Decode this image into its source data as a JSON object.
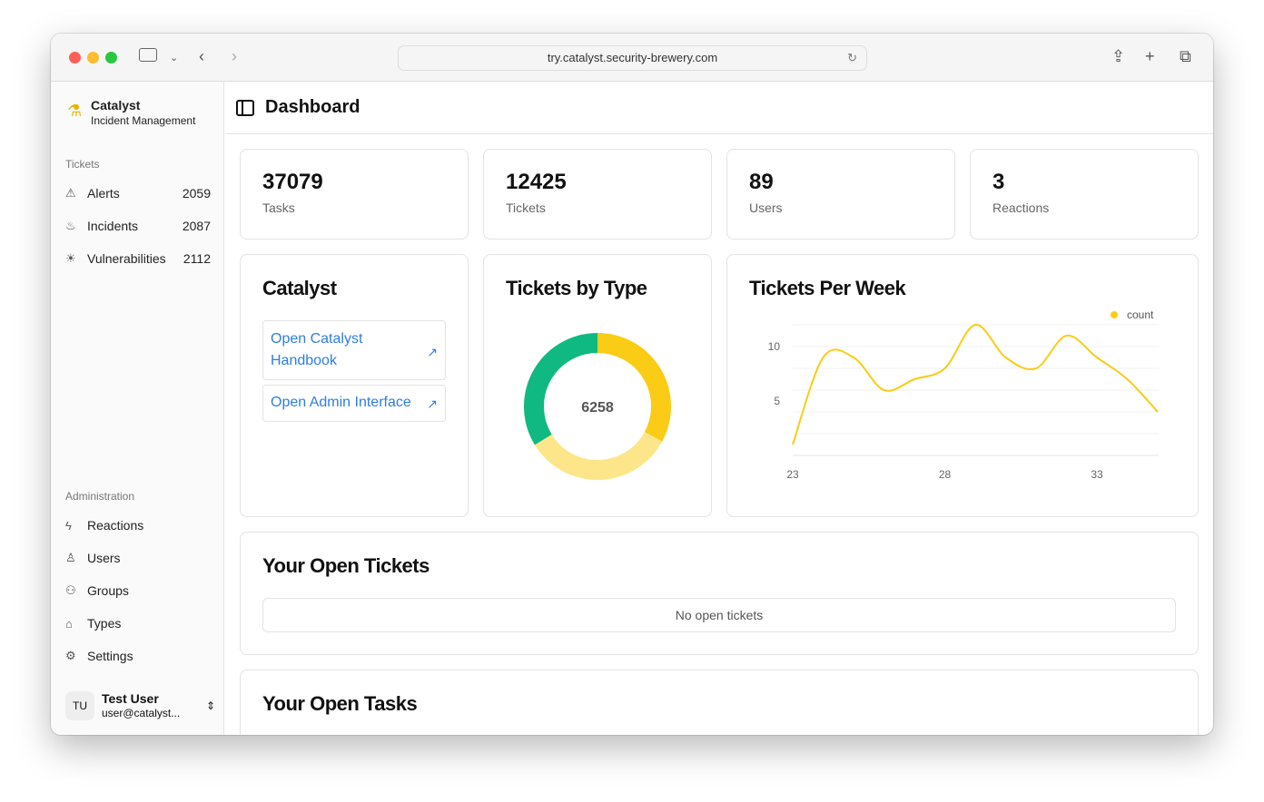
{
  "browser": {
    "url": "try.catalyst.security-brewery.com"
  },
  "sidebar": {
    "brand": {
      "name": "Catalyst",
      "subtitle": "Incident Management"
    },
    "tickets_label": "Tickets",
    "tickets": [
      {
        "label": "Alerts",
        "count": "2059",
        "icon": "alert-triangle-icon"
      },
      {
        "label": "Incidents",
        "count": "2087",
        "icon": "flame-icon"
      },
      {
        "label": "Vulnerabilities",
        "count": "2112",
        "icon": "bug-icon"
      }
    ],
    "admin_label": "Administration",
    "admin": [
      {
        "label": "Reactions",
        "icon": "zap-icon"
      },
      {
        "label": "Users",
        "icon": "user-icon"
      },
      {
        "label": "Groups",
        "icon": "users-icon"
      },
      {
        "label": "Types",
        "icon": "tag-icon"
      },
      {
        "label": "Settings",
        "icon": "gear-icon"
      }
    ],
    "user": {
      "initials": "TU",
      "name": "Test User",
      "email": "user@catalyst..."
    }
  },
  "header": {
    "title": "Dashboard"
  },
  "stats": [
    {
      "value": "37079",
      "label": "Tasks"
    },
    {
      "value": "12425",
      "label": "Tickets"
    },
    {
      "value": "89",
      "label": "Users"
    },
    {
      "value": "3",
      "label": "Reactions"
    }
  ],
  "catalyst_card": {
    "title": "Catalyst",
    "links": [
      "Open Catalyst Handbook",
      "Open Admin Interface"
    ]
  },
  "tickets_by_type": {
    "title": "Tickets by Type",
    "total": "6258"
  },
  "tickets_per_week": {
    "title": "Tickets Per Week"
  },
  "open_tickets": {
    "title": "Your Open Tickets",
    "empty": "No open tickets"
  },
  "open_tasks": {
    "title": "Your Open Tasks"
  },
  "chart_data": [
    {
      "type": "pie",
      "donut": true,
      "center_label": "6258",
      "values": [
        2059,
        2087,
        2112
      ],
      "colors": [
        "#facc15",
        "#fde68a",
        "#10b981"
      ]
    },
    {
      "type": "line",
      "x": [
        23,
        24,
        25,
        26,
        27,
        28,
        29,
        30,
        31,
        32,
        33,
        34,
        35
      ],
      "series": [
        {
          "name": "count",
          "values": [
            1,
            9,
            9,
            6,
            7,
            8,
            12,
            9,
            8,
            11,
            9,
            7,
            4
          ],
          "color": "#facc15"
        }
      ],
      "xticks": [
        "23",
        "28",
        "33"
      ],
      "yticks": [
        "5",
        "10"
      ],
      "ylim": [
        0,
        12
      ],
      "grid": true,
      "legend": "top-right"
    }
  ]
}
